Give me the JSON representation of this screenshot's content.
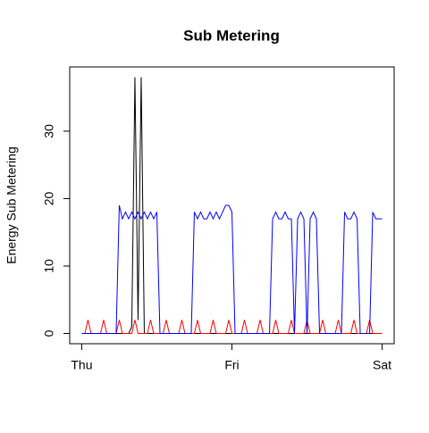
{
  "chart_data": {
    "type": "line",
    "title": "Sub Metering",
    "ylabel": "Energy Sub Metering",
    "x": [
      0,
      0.5,
      1,
      1.5,
      2,
      2.5,
      3,
      3.5,
      4,
      4.5,
      5,
      5.5,
      6,
      6.5,
      7,
      7.5,
      8,
      8.5,
      9,
      9.5,
      10,
      10.5,
      11,
      11.5,
      12,
      12.5,
      13,
      13.5,
      14,
      14.5,
      15,
      15.5,
      16,
      16.5,
      17,
      17.5,
      18,
      18.5,
      19,
      19.5,
      20,
      20.5,
      21,
      21.5,
      22,
      22.5,
      23,
      23.5,
      24,
      24.5,
      25,
      25.5,
      26,
      26.5,
      27,
      27.5,
      28,
      28.5,
      29,
      29.5,
      30,
      30.5,
      31,
      31.5,
      32,
      32.5,
      33,
      33.5,
      34,
      34.5,
      35,
      35.5,
      36,
      36.5,
      37,
      37.5,
      38,
      38.5,
      39,
      39.5,
      40,
      40.5,
      41,
      41.5,
      42,
      42.5,
      43,
      43.5,
      44,
      44.5,
      45,
      45.5,
      46,
      46.5,
      47,
      47.5,
      48
    ],
    "series": [
      {
        "color": "#000000",
        "values": [
          0,
          0,
          0,
          0,
          0,
          0,
          0,
          0,
          0,
          0,
          0,
          0,
          0,
          0,
          0,
          0,
          1,
          38,
          2,
          38,
          0,
          0,
          0,
          0,
          0,
          0,
          0,
          0,
          0,
          0,
          0,
          0,
          0,
          0,
          0,
          0,
          0,
          0,
          0,
          0,
          0,
          0,
          0,
          0,
          0,
          0,
          0,
          0,
          0,
          0,
          0,
          0,
          0,
          0,
          0,
          0,
          0,
          0,
          0,
          0,
          0,
          0,
          0,
          0,
          0,
          0,
          0,
          0,
          0,
          0,
          0,
          0,
          0,
          0,
          0,
          0,
          0,
          0,
          0,
          0,
          0,
          0,
          0,
          0,
          0,
          0,
          0,
          0,
          0,
          0,
          0,
          0,
          0,
          0,
          0,
          0,
          0
        ]
      },
      {
        "color": "#ff0000",
        "values": [
          0,
          0,
          2,
          0,
          0,
          0,
          0,
          2,
          0,
          0,
          0,
          0,
          2,
          0,
          0,
          0,
          0,
          2,
          0,
          0,
          0,
          0,
          2,
          0,
          0,
          0,
          0,
          2,
          0,
          0,
          0,
          0,
          2,
          0,
          0,
          0,
          0,
          2,
          0,
          0,
          0,
          0,
          2,
          0,
          0,
          0,
          0,
          2,
          0,
          0,
          0,
          0,
          2,
          0,
          0,
          0,
          0,
          2,
          0,
          0,
          0,
          0,
          2,
          0,
          0,
          0,
          0,
          2,
          0,
          0,
          0,
          0,
          2,
          0,
          0,
          0,
          0,
          2,
          0,
          0,
          0,
          0,
          2,
          0,
          0,
          0,
          0,
          2,
          0,
          0,
          0,
          0,
          2,
          0,
          0,
          0,
          0
        ]
      },
      {
        "color": "#0000ff",
        "values": [
          0,
          0,
          0,
          0,
          0,
          0,
          0,
          0,
          0,
          0,
          0,
          0,
          19,
          17,
          18,
          17,
          18,
          17,
          18,
          17,
          18,
          17,
          18,
          17,
          18,
          0,
          0,
          0,
          0,
          0,
          0,
          0,
          0,
          0,
          0,
          0,
          18,
          17,
          18,
          17,
          17,
          18,
          17,
          18,
          17,
          18,
          19,
          19,
          18,
          0,
          0,
          0,
          0,
          0,
          0,
          0,
          0,
          0,
          0,
          0,
          0,
          17,
          18,
          17,
          17,
          18,
          17,
          17,
          0,
          17,
          18,
          17,
          0,
          17,
          18,
          17,
          0,
          0,
          0,
          0,
          0,
          0,
          0,
          0,
          18,
          17,
          17,
          18,
          17,
          0,
          0,
          0,
          0,
          18,
          17,
          17,
          17
        ]
      }
    ],
    "xlim": [
      -1.92,
      49.92
    ],
    "xticks": [
      {
        "value": 0,
        "label": "Thu"
      },
      {
        "value": 24,
        "label": "Fri"
      },
      {
        "value": 48,
        "label": "Sat"
      }
    ],
    "ylim": [
      -1.52,
      39.52
    ],
    "yticks": [
      0,
      10,
      20,
      30
    ]
  }
}
